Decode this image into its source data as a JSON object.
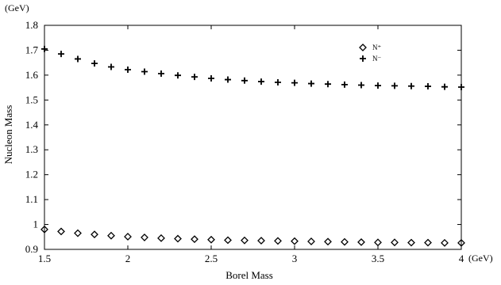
{
  "chart_data": {
    "type": "scatter",
    "xlabel": "Borel Mass",
    "ylabel": "Nucleon Mass",
    "x_unit": "(GeV)",
    "y_unit": "(GeV)",
    "xlim": [
      1.5,
      4.0
    ],
    "ylim": [
      0.9,
      1.8
    ],
    "x_ticks": [
      "1.5",
      "2",
      "2.5",
      "3",
      "3.5",
      "4"
    ],
    "y_ticks": [
      "0.9",
      "1",
      "1.1",
      "1.2",
      "1.3",
      "1.4",
      "1.5",
      "1.6",
      "1.7",
      "1.8"
    ],
    "grid": false,
    "legend_position": "top-right",
    "series": [
      {
        "name": "N⁺",
        "marker": "diamond",
        "x": [
          1.5,
          1.6,
          1.7,
          1.8,
          1.9,
          2.0,
          2.1,
          2.2,
          2.3,
          2.4,
          2.5,
          2.6,
          2.7,
          2.8,
          2.9,
          3.0,
          3.1,
          3.2,
          3.3,
          3.4,
          3.5,
          3.6,
          3.7,
          3.8,
          3.9,
          4.0
        ],
        "y": [
          0.98,
          0.972,
          0.965,
          0.96,
          0.955,
          0.951,
          0.948,
          0.945,
          0.943,
          0.941,
          0.939,
          0.937,
          0.936,
          0.935,
          0.934,
          0.933,
          0.932,
          0.931,
          0.93,
          0.929,
          0.928,
          0.928,
          0.927,
          0.927,
          0.926,
          0.926
        ]
      },
      {
        "name": "N⁻",
        "marker": "plus",
        "x": [
          1.5,
          1.6,
          1.7,
          1.8,
          1.9,
          2.0,
          2.1,
          2.2,
          2.3,
          2.4,
          2.5,
          2.6,
          2.7,
          2.8,
          2.9,
          3.0,
          3.1,
          3.2,
          3.3,
          3.4,
          3.5,
          3.6,
          3.7,
          3.8,
          3.9,
          4.0
        ],
        "y": [
          1.705,
          1.685,
          1.665,
          1.647,
          1.633,
          1.622,
          1.614,
          1.606,
          1.599,
          1.593,
          1.587,
          1.582,
          1.578,
          1.574,
          1.571,
          1.569,
          1.566,
          1.564,
          1.562,
          1.56,
          1.558,
          1.557,
          1.556,
          1.555,
          1.553,
          1.552
        ]
      }
    ]
  }
}
